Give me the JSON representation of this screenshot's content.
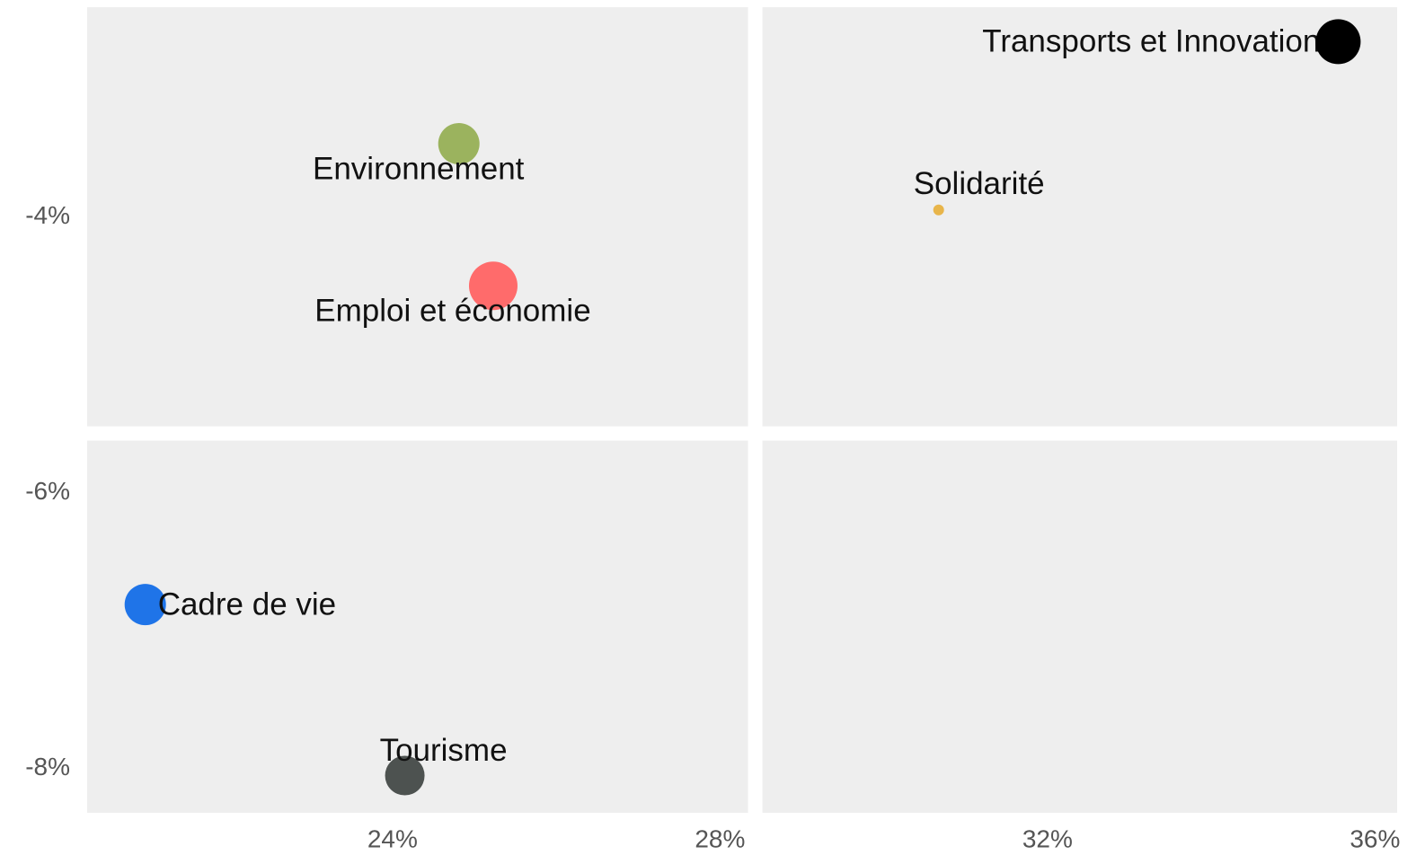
{
  "chart_data": {
    "type": "scatter",
    "categories": [
      "Transports et Innovation",
      "Environnement",
      "Solidarité",
      "Emploi et économie",
      "Cadre de vie",
      "Tourisme"
    ],
    "x": [
      35.55,
      24.81,
      30.67,
      25.23,
      20.98,
      24.15
    ],
    "y": [
      -2.73,
      -3.47,
      -3.95,
      -4.5,
      -6.81,
      -8.05
    ],
    "sizes": [
      625,
      529,
      36,
      729,
      529,
      484
    ],
    "colors": [
      "#000000",
      "#9bb35e",
      "#e8b54a",
      "#ff6b6b",
      "#1f74e8",
      "#4d5250"
    ],
    "xlim": [
      20.27,
      36.27
    ],
    "ylim": [
      -8.32,
      -2.48
    ],
    "xticks": [
      {
        "value": 24,
        "label": "24%"
      },
      {
        "value": 28,
        "label": "28%"
      },
      {
        "value": 32,
        "label": "32%"
      },
      {
        "value": 36,
        "label": "36%"
      }
    ],
    "yticks": [
      {
        "value": -4,
        "label": "-4%"
      },
      {
        "value": -6,
        "label": "-6%"
      },
      {
        "value": -8,
        "label": "-8%"
      }
    ],
    "quadrant_x": 28.43,
    "quadrant_y": -5.57,
    "panel_color": "#eeeeee"
  }
}
